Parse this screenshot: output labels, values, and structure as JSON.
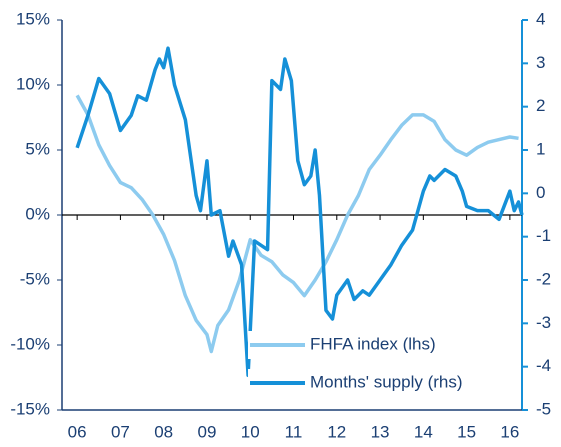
{
  "chart_data": {
    "type": "line",
    "xlim": [
      5.65,
      16.28
    ],
    "xticks": [
      {
        "value": 6,
        "label": "06"
      },
      {
        "value": 7,
        "label": "07"
      },
      {
        "value": 8,
        "label": "08"
      },
      {
        "value": 9,
        "label": "09"
      },
      {
        "value": 10,
        "label": "10"
      },
      {
        "value": 11,
        "label": "11"
      },
      {
        "value": 12,
        "label": "12"
      },
      {
        "value": 13,
        "label": "13"
      },
      {
        "value": 14,
        "label": "14"
      },
      {
        "value": 15,
        "label": "15"
      },
      {
        "value": 16,
        "label": "16"
      }
    ],
    "ylim": [
      -15,
      15
    ],
    "yticks": [
      {
        "value": -15,
        "label": "-15%"
      },
      {
        "value": -10,
        "label": "-10%"
      },
      {
        "value": -5,
        "label": "-5%"
      },
      {
        "value": 0,
        "label": "0%"
      },
      {
        "value": 5,
        "label": "5%"
      },
      {
        "value": 10,
        "label": "10%"
      },
      {
        "value": 15,
        "label": "15%"
      }
    ],
    "y2lim": [
      -5,
      4
    ],
    "y2ticks": [
      -5,
      -4,
      -3,
      -2,
      -1,
      0,
      1,
      2,
      3,
      4
    ],
    "legend": "lower center",
    "series": [
      {
        "name": "FHFA index (lhs)",
        "color": "#8dcbef",
        "axis": "y",
        "x": [
          6.0,
          6.25,
          6.5,
          6.75,
          7.0,
          7.25,
          7.5,
          7.75,
          8.0,
          8.25,
          8.5,
          8.75,
          9.0,
          9.1,
          9.25,
          9.5,
          9.75,
          10.0,
          10.25,
          10.5,
          10.75,
          11.0,
          11.25,
          11.5,
          11.75,
          12.0,
          12.25,
          12.5,
          12.75,
          13.0,
          13.25,
          13.5,
          13.75,
          14.0,
          14.25,
          14.5,
          14.75,
          15.0,
          15.25,
          15.5,
          15.75,
          16.0,
          16.2
        ],
        "values": [
          9.2,
          7.7,
          5.4,
          3.8,
          2.5,
          2.1,
          1.2,
          0,
          -1.5,
          -3.5,
          -6.2,
          -8.1,
          -9.2,
          -10.5,
          -8.5,
          -7.3,
          -5,
          -1.9,
          -3.1,
          -3.6,
          -4.6,
          -5.2,
          -6.2,
          -5,
          -3.6,
          -1.9,
          0,
          1.5,
          3.5,
          4.6,
          5.8,
          6.9,
          7.7,
          7.7,
          7.2,
          5.8,
          5.0,
          4.6,
          5.2,
          5.6,
          5.8,
          6.0,
          5.9
        ]
      },
      {
        "name": "Months' supply (rhs)",
        "color": "#1590d8",
        "axis": "y2",
        "x": [
          6.0,
          6.25,
          6.5,
          6.75,
          7.0,
          7.25,
          7.4,
          7.6,
          7.8,
          7.9,
          8.0,
          8.1,
          8.25,
          8.5,
          8.75,
          8.85,
          9.0,
          9.1,
          9.3,
          9.5,
          9.6,
          9.8,
          9.95,
          10.1,
          10.25,
          10.4,
          10.5,
          10.7,
          10.8,
          10.95,
          11.1,
          11.25,
          11.4,
          11.5,
          11.6,
          11.75,
          11.9,
          12.0,
          12.25,
          12.4,
          12.6,
          12.75,
          13.0,
          13.25,
          13.5,
          13.75,
          14.0,
          14.15,
          14.25,
          14.5,
          14.75,
          14.9,
          15.0,
          15.25,
          15.5,
          15.75,
          16.0,
          16.1,
          16.2,
          16.28
        ],
        "values": [
          1.05,
          1.8,
          2.65,
          2.3,
          1.45,
          1.8,
          2.25,
          2.15,
          2.85,
          3.1,
          2.9,
          3.35,
          2.5,
          1.7,
          -0.05,
          -0.4,
          0.75,
          -0.5,
          -0.4,
          -1.45,
          -1.1,
          -1.65,
          -4.2,
          -1.1,
          -1.2,
          -1.3,
          2.6,
          2.4,
          3.1,
          2.6,
          0.75,
          0.2,
          0.4,
          1.0,
          -0.05,
          -2.7,
          -2.9,
          -2.35,
          -2.0,
          -2.45,
          -2.25,
          -2.35,
          -2.0,
          -1.65,
          -1.2,
          -0.85,
          0.05,
          0.4,
          0.3,
          0.55,
          0.4,
          0.05,
          -0.3,
          -0.4,
          -0.4,
          -0.6,
          0.05,
          -0.4,
          -0.2,
          -0.5
        ]
      }
    ]
  }
}
